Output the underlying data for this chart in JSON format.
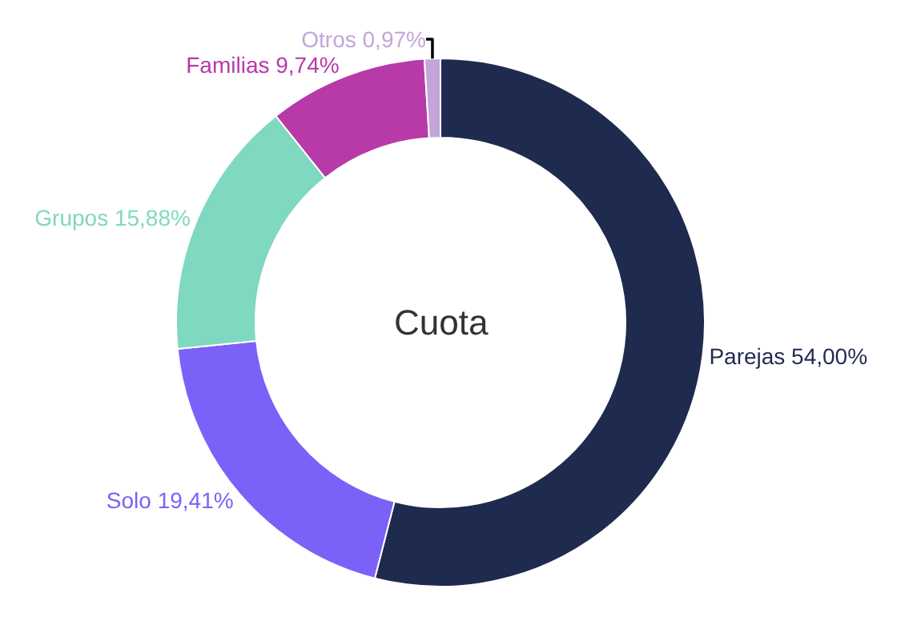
{
  "chart_data": {
    "type": "donut",
    "title": "Cuota",
    "categories": [
      "Parejas",
      "Solo",
      "Grupos",
      "Familias",
      "Otros"
    ],
    "values": [
      54.0,
      19.41,
      15.88,
      9.74,
      0.97
    ],
    "value_labels": [
      "54,00%",
      "19,41%",
      "15,88%",
      "9,74%",
      "0,97%"
    ],
    "colors": [
      "#1f2a4f",
      "#7b61f8",
      "#7fd8c0",
      "#b83aa8",
      "#c3a6d9"
    ],
    "legend": false
  }
}
